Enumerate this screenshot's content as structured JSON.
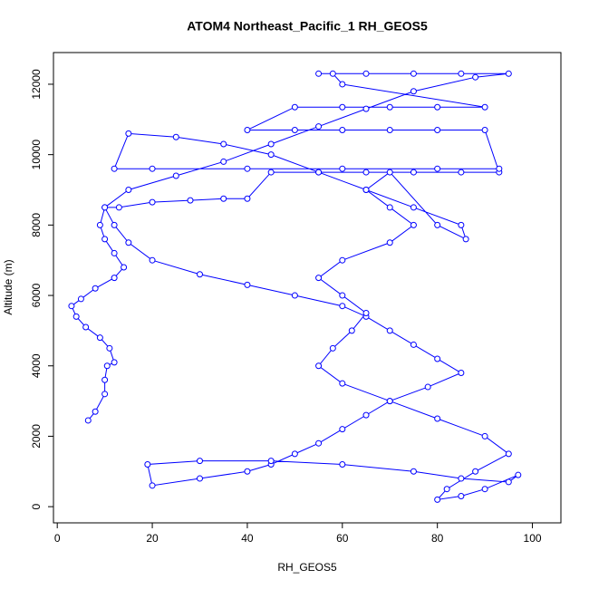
{
  "chart_data": {
    "type": "line",
    "title": "ATOM4 Northeast_Pacific_1 RH_GEOS5",
    "x_label": "RH_GEOS5",
    "y_label": "Altitude (m)",
    "color": "#0000ff",
    "markers": "open-circle",
    "grid": false,
    "xlim": [
      -0.8,
      106
    ],
    "ylim": [
      -460,
      12900
    ],
    "xticks": [
      0,
      20,
      40,
      60,
      80,
      100
    ],
    "yticks": [
      0,
      2000,
      4000,
      6000,
      8000,
      10000,
      12000
    ],
    "x": [
      6.5,
      8,
      10,
      10,
      10.5,
      12,
      11,
      9,
      6,
      4,
      3,
      5,
      8,
      12,
      14,
      12,
      10,
      9,
      10,
      13,
      20,
      28,
      35,
      40,
      45,
      55,
      65,
      75,
      85,
      93,
      90,
      80,
      70,
      60,
      50,
      40,
      50,
      60,
      70,
      80,
      90,
      60,
      58,
      55,
      65,
      75,
      85,
      95,
      88,
      75,
      65,
      55,
      45,
      35,
      25,
      15,
      10,
      12,
      15,
      20,
      30,
      40,
      50,
      60,
      65,
      70,
      75,
      80,
      85,
      78,
      70,
      65,
      60,
      55,
      50,
      45,
      40,
      30,
      20,
      19,
      30,
      45,
      60,
      75,
      85,
      95,
      97,
      90,
      85,
      80,
      82,
      88,
      95,
      90,
      80,
      70,
      60,
      55,
      58,
      62,
      65,
      60,
      55,
      60,
      70,
      75,
      70,
      65,
      70,
      80,
      86,
      85,
      75,
      65,
      55,
      45,
      35,
      25,
      15,
      12,
      20,
      40,
      60,
      80,
      93
    ],
    "values": [
      2450,
      2700,
      3200,
      3600,
      4000,
      4100,
      4500,
      4800,
      5100,
      5400,
      5700,
      5900,
      6200,
      6500,
      6800,
      7200,
      7600,
      8000,
      8500,
      8500,
      8650,
      8700,
      8750,
      8750,
      9500,
      9500,
      9500,
      9500,
      9500,
      9500,
      10700,
      10700,
      10700,
      10700,
      10700,
      10700,
      11350,
      11350,
      11350,
      11350,
      11350,
      12000,
      12300,
      12300,
      12300,
      12300,
      12300,
      12300,
      12200,
      11800,
      11300,
      10800,
      10300,
      9800,
      9400,
      9000,
      8500,
      8000,
      7500,
      7000,
      6600,
      6300,
      6000,
      5700,
      5400,
      5000,
      4600,
      4200,
      3800,
      3400,
      3000,
      2600,
      2200,
      1800,
      1500,
      1200,
      1000,
      800,
      600,
      1200,
      1300,
      1300,
      1200,
      1000,
      800,
      700,
      900,
      500,
      300,
      200,
      500,
      1000,
      1500,
      2000,
      2500,
      3000,
      3500,
      4000,
      4500,
      5000,
      5500,
      6000,
      6500,
      7000,
      7500,
      8000,
      8500,
      9000,
      9500,
      8000,
      7600,
      8000,
      8500,
      9000,
      9500,
      10000,
      10300,
      10500,
      10600,
      9600,
      9600,
      9600,
      9600,
      9600,
      9600
    ]
  }
}
